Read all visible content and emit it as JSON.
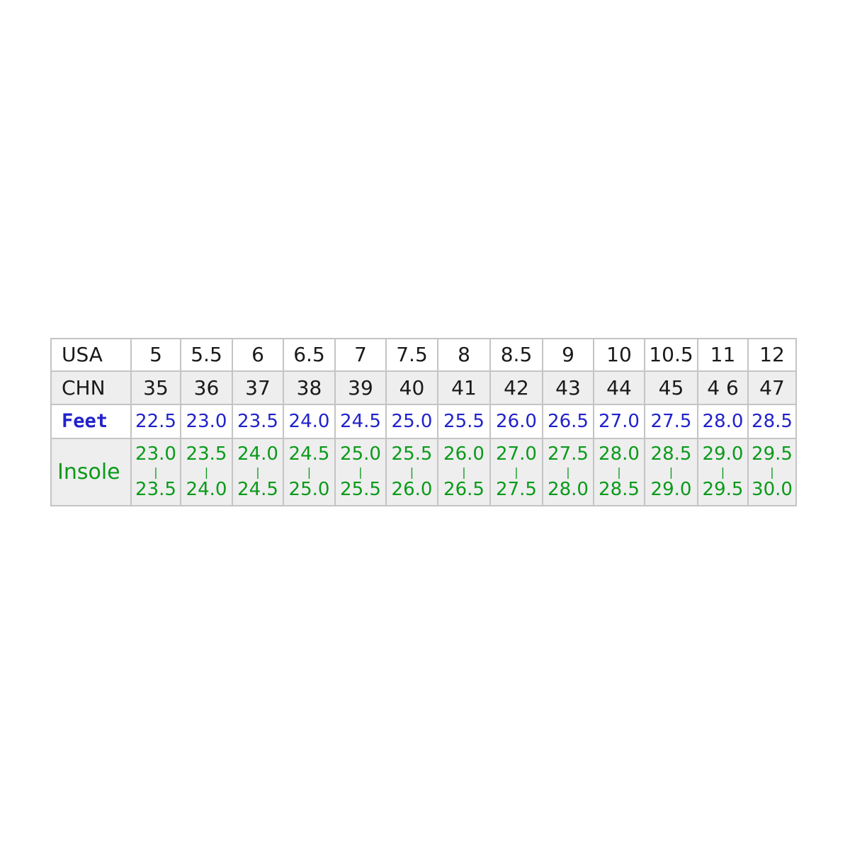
{
  "table": {
    "rows": [
      {
        "label": "USA",
        "values": [
          "5",
          "5.5",
          "6",
          "6.5",
          "7",
          "7.5",
          "8",
          "8.5",
          "9",
          "10",
          "10.5",
          "11",
          "12"
        ]
      },
      {
        "label": "CHN",
        "values": [
          "35",
          "36",
          "37",
          "38",
          "39",
          "40",
          "41",
          "42",
          "43",
          "44",
          "45",
          "4 6",
          "47"
        ]
      },
      {
        "label": "Feet",
        "values": [
          "22.5",
          "23.0",
          "23.5",
          "24.0",
          "24.5",
          "25.0",
          "25.5",
          "26.0",
          "26.5",
          "27.0",
          "27.5",
          "28.0",
          "28.5"
        ]
      }
    ],
    "insole": {
      "label": "Insole",
      "separator": "|",
      "values": [
        [
          "23.0",
          "23.5"
        ],
        [
          "23.5",
          "24.0"
        ],
        [
          "24.0",
          "24.5"
        ],
        [
          "24.5",
          "25.0"
        ],
        [
          "25.0",
          "25.5"
        ],
        [
          "25.5",
          "26.0"
        ],
        [
          "26.0",
          "26.5"
        ],
        [
          "27.0",
          "27.5"
        ],
        [
          "27.5",
          "28.0"
        ],
        [
          "28.0",
          "28.5"
        ],
        [
          "28.5",
          "29.0"
        ],
        [
          "29.0",
          "29.5"
        ],
        [
          "29.5",
          "30.0"
        ]
      ]
    }
  },
  "colors": {
    "feet": "#2222cc",
    "insole": "#0a9a1a",
    "text": "#1a1a1a",
    "grid": "#c4c4c4",
    "shaded_row": "#eeeeee"
  }
}
